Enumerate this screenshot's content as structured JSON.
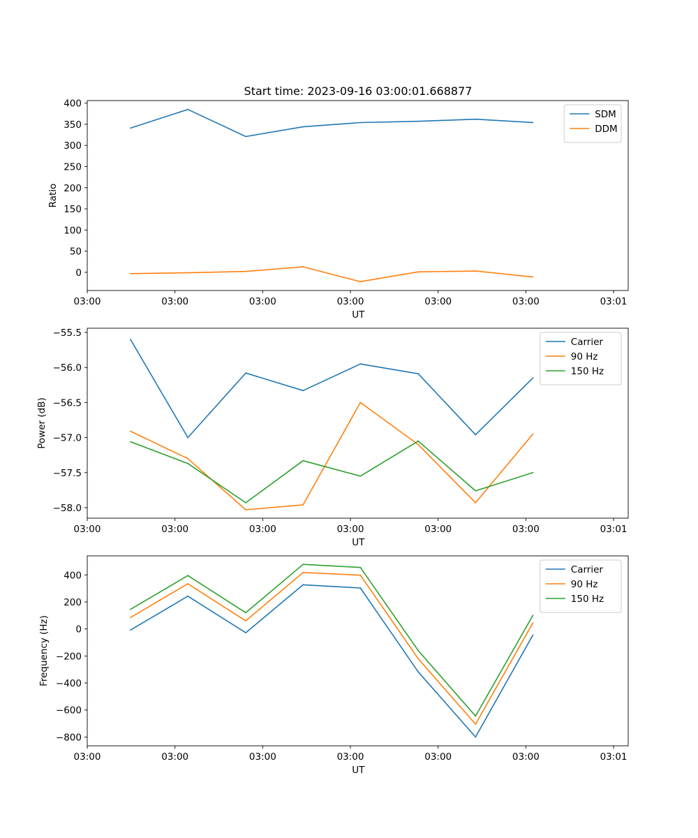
{
  "figure": {
    "title": "Start time: 2023-09-16 03:00:01.668877"
  },
  "chart_data": [
    {
      "type": "line",
      "ylabel": "Ratio",
      "xlabel": "UT",
      "xlim": [
        0,
        9.25
      ],
      "x_ticks": [
        {
          "value": 0,
          "label": "03:00"
        },
        {
          "value": 1.5,
          "label": "03:00"
        },
        {
          "value": 3,
          "label": "03:00"
        },
        {
          "value": 4.5,
          "label": "03:00"
        },
        {
          "value": 6,
          "label": "03:00"
        },
        {
          "value": 7.5,
          "label": "03:00"
        },
        {
          "value": 9,
          "label": "03:01"
        }
      ],
      "x": [
        0.74,
        1.72,
        2.71,
        3.69,
        4.67,
        5.66,
        6.64,
        7.62
      ],
      "ylim": [
        -43,
        406
      ],
      "y_ticks": [
        {
          "value": 0,
          "label": "0"
        },
        {
          "value": 50,
          "label": "50"
        },
        {
          "value": 100,
          "label": "100"
        },
        {
          "value": 150,
          "label": "150"
        },
        {
          "value": 200,
          "label": "200"
        },
        {
          "value": 250,
          "label": "250"
        },
        {
          "value": 300,
          "label": "300"
        },
        {
          "value": 350,
          "label": "350"
        },
        {
          "value": 400,
          "label": "400"
        }
      ],
      "legend_position": "top-right",
      "series": [
        {
          "name": "SDM",
          "color": "#1f77b4",
          "values": [
            341,
            385,
            321,
            344,
            354,
            357,
            362,
            354
          ]
        },
        {
          "name": "DDM",
          "color": "#ff7f0e",
          "values": [
            -3,
            -1,
            2,
            13,
            -22,
            1,
            3,
            -11
          ]
        }
      ]
    },
    {
      "type": "line",
      "ylabel": "Power (dB)",
      "xlabel": "UT",
      "xlim": [
        0,
        9.25
      ],
      "x_ticks": [
        {
          "value": 0,
          "label": "03:00"
        },
        {
          "value": 1.5,
          "label": "03:00"
        },
        {
          "value": 3,
          "label": "03:00"
        },
        {
          "value": 4.5,
          "label": "03:00"
        },
        {
          "value": 6,
          "label": "03:00"
        },
        {
          "value": 7.5,
          "label": "03:00"
        },
        {
          "value": 9,
          "label": "03:01"
        }
      ],
      "x": [
        0.74,
        1.72,
        2.71,
        3.69,
        4.67,
        5.66,
        6.64,
        7.62
      ],
      "ylim": [
        -58.15,
        -55.44
      ],
      "y_ticks": [
        {
          "value": -55.5,
          "label": "−55.5"
        },
        {
          "value": -56.0,
          "label": "−56.0"
        },
        {
          "value": -56.5,
          "label": "−56.5"
        },
        {
          "value": -57.0,
          "label": "−57.0"
        },
        {
          "value": -57.5,
          "label": "−57.5"
        },
        {
          "value": -58.0,
          "label": "−58.0"
        }
      ],
      "legend_position": "top-right",
      "series": [
        {
          "name": "Carrier",
          "color": "#1f77b4",
          "values": [
            -55.6,
            -57.0,
            -56.08,
            -56.33,
            -55.95,
            -56.09,
            -56.96,
            -56.15
          ]
        },
        {
          "name": "90 Hz",
          "color": "#ff7f0e",
          "values": [
            -56.91,
            -57.3,
            -58.03,
            -57.96,
            -56.5,
            -57.1,
            -57.93,
            -56.95
          ]
        },
        {
          "name": "150 Hz",
          "color": "#2ca02c",
          "values": [
            -57.06,
            -57.37,
            -57.93,
            -57.33,
            -57.55,
            -57.05,
            -57.76,
            -57.5
          ]
        }
      ]
    },
    {
      "type": "line",
      "ylabel": "Frequency (Hz)",
      "xlabel": "UT",
      "xlim": [
        0,
        9.25
      ],
      "x_ticks": [
        {
          "value": 0,
          "label": "03:00"
        },
        {
          "value": 1.5,
          "label": "03:00"
        },
        {
          "value": 3,
          "label": "03:00"
        },
        {
          "value": 4.5,
          "label": "03:00"
        },
        {
          "value": 6,
          "label": "03:00"
        },
        {
          "value": 7.5,
          "label": "03:00"
        },
        {
          "value": 9,
          "label": "03:01"
        }
      ],
      "x": [
        0.74,
        1.72,
        2.71,
        3.69,
        4.67,
        5.66,
        6.64,
        7.62
      ],
      "ylim": [
        -865,
        541
      ],
      "y_ticks": [
        {
          "value": 400,
          "label": "400"
        },
        {
          "value": 200,
          "label": "200"
        },
        {
          "value": 0,
          "label": "0"
        },
        {
          "value": -200,
          "label": "−200"
        },
        {
          "value": -400,
          "label": "−400"
        },
        {
          "value": -600,
          "label": "−600"
        },
        {
          "value": -800,
          "label": "−800"
        }
      ],
      "legend_position": "top-right",
      "series": [
        {
          "name": "Carrier",
          "color": "#1f77b4",
          "values": [
            -8,
            243,
            -28,
            327,
            303,
            -318,
            -800,
            -45
          ]
        },
        {
          "name": "90 Hz",
          "color": "#ff7f0e",
          "values": [
            85,
            335,
            60,
            418,
            398,
            -220,
            -705,
            45
          ]
        },
        {
          "name": "150 Hz",
          "color": "#2ca02c",
          "values": [
            145,
            395,
            120,
            478,
            455,
            -160,
            -645,
            100
          ]
        }
      ]
    }
  ]
}
